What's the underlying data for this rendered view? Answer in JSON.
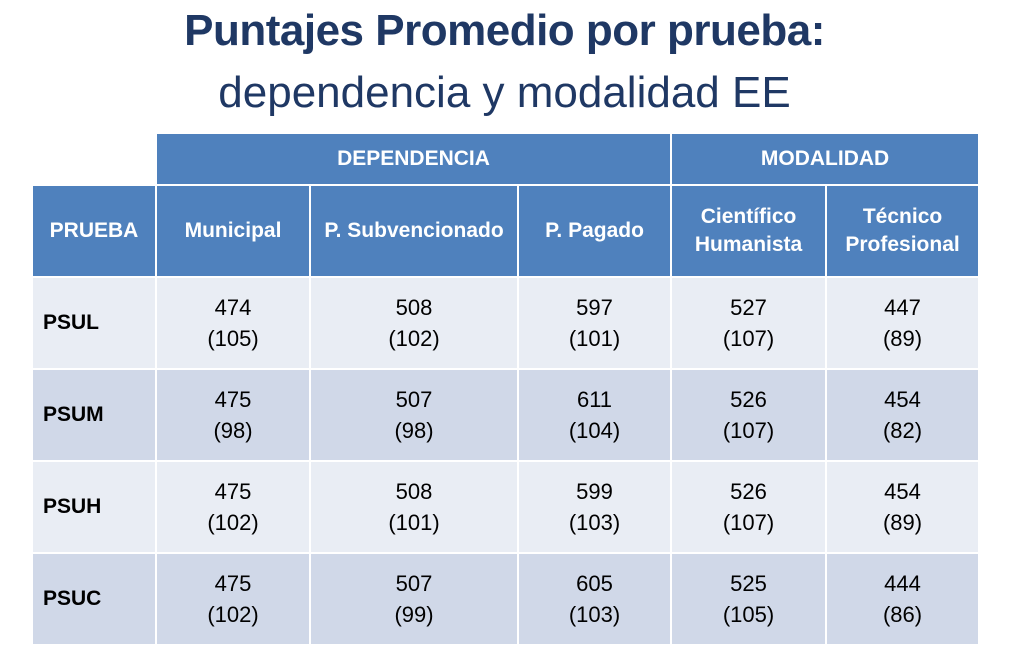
{
  "title": {
    "line1": "Puntajes Promedio por prueba:",
    "line2": "dependencia y modalidad EE"
  },
  "table": {
    "group_headers": {
      "dependencia": "DEPENDENCIA",
      "modalidad": "MODALIDAD"
    },
    "column_headers": {
      "prueba": "PRUEBA",
      "municipal": "Municipal",
      "subvencionado": "P. Subvencionado",
      "pagado": "P. Pagado",
      "cientifico_line1": "Científico",
      "cientifico_line2": "Humanista",
      "tecnico_line1": "Técnico",
      "tecnico_line2": "Profesional"
    },
    "rows": [
      {
        "label": "PSUL",
        "cells": [
          {
            "value": "474",
            "sd": "(105)"
          },
          {
            "value": "508",
            "sd": "(102)"
          },
          {
            "value": "597",
            "sd": "(101)"
          },
          {
            "value": "527",
            "sd": "(107)"
          },
          {
            "value": "447",
            "sd": "(89)"
          }
        ]
      },
      {
        "label": "PSUM",
        "cells": [
          {
            "value": "475",
            "sd": "(98)"
          },
          {
            "value": "507",
            "sd": "(98)"
          },
          {
            "value": "611",
            "sd": "(104)"
          },
          {
            "value": "526",
            "sd": "(107)"
          },
          {
            "value": "454",
            "sd": "(82)"
          }
        ]
      },
      {
        "label": "PSUH",
        "cells": [
          {
            "value": "475",
            "sd": "(102)"
          },
          {
            "value": "508",
            "sd": "(101)"
          },
          {
            "value": "599",
            "sd": "(103)"
          },
          {
            "value": "526",
            "sd": "(107)"
          },
          {
            "value": "454",
            "sd": "(89)"
          }
        ]
      },
      {
        "label": "PSUC",
        "cells": [
          {
            "value": "475",
            "sd": "(102)"
          },
          {
            "value": "507",
            "sd": "(99)"
          },
          {
            "value": "605",
            "sd": "(103)"
          },
          {
            "value": "525",
            "sd": "(105)"
          },
          {
            "value": "444",
            "sd": "(86)"
          }
        ]
      }
    ]
  },
  "colors": {
    "title": "#1f3864",
    "header_bg": "#4f81bd",
    "row_light": "#e9edf4",
    "row_dark": "#d0d8e8"
  }
}
